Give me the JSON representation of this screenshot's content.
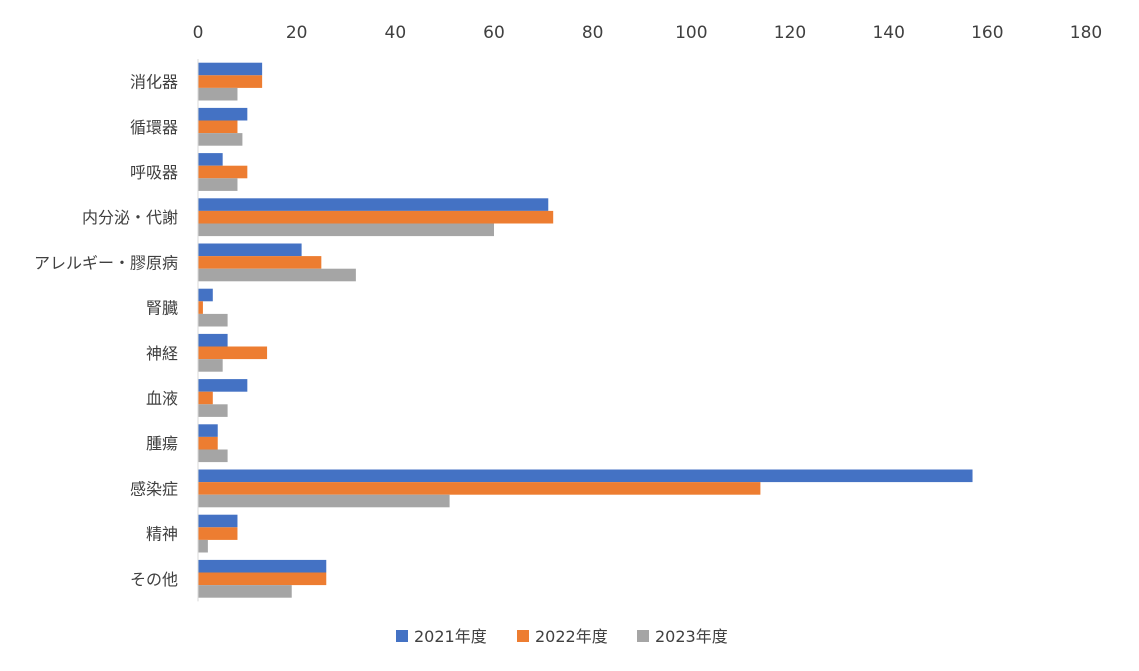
{
  "chart_data": {
    "type": "bar",
    "orientation": "horizontal",
    "title": "",
    "xlabel": "",
    "ylabel": "",
    "xlim": [
      0,
      180
    ],
    "xticks": [
      0,
      20,
      40,
      60,
      80,
      100,
      120,
      140,
      160,
      180
    ],
    "x_axis_position": "top",
    "grid": false,
    "legend_position": "bottom",
    "categories": [
      "消化器",
      "循環器",
      "呼吸器",
      "内分泌・代謝",
      "アレルギー・膠原病",
      "腎臓",
      "神経",
      "血液",
      "腫瘍",
      "感染症",
      "精神",
      "その他"
    ],
    "series": [
      {
        "name": "2021年度",
        "color": "#4472C4",
        "values": [
          13,
          10,
          5,
          71,
          21,
          3,
          6,
          10,
          4,
          157,
          8,
          26
        ]
      },
      {
        "name": "2022年度",
        "color": "#ED7D31",
        "values": [
          13,
          8,
          10,
          72,
          25,
          1,
          14,
          3,
          4,
          114,
          8,
          26
        ]
      },
      {
        "name": "2023年度",
        "color": "#A5A5A5",
        "values": [
          8,
          9,
          8,
          60,
          32,
          6,
          5,
          6,
          6,
          51,
          2,
          19
        ]
      }
    ]
  }
}
